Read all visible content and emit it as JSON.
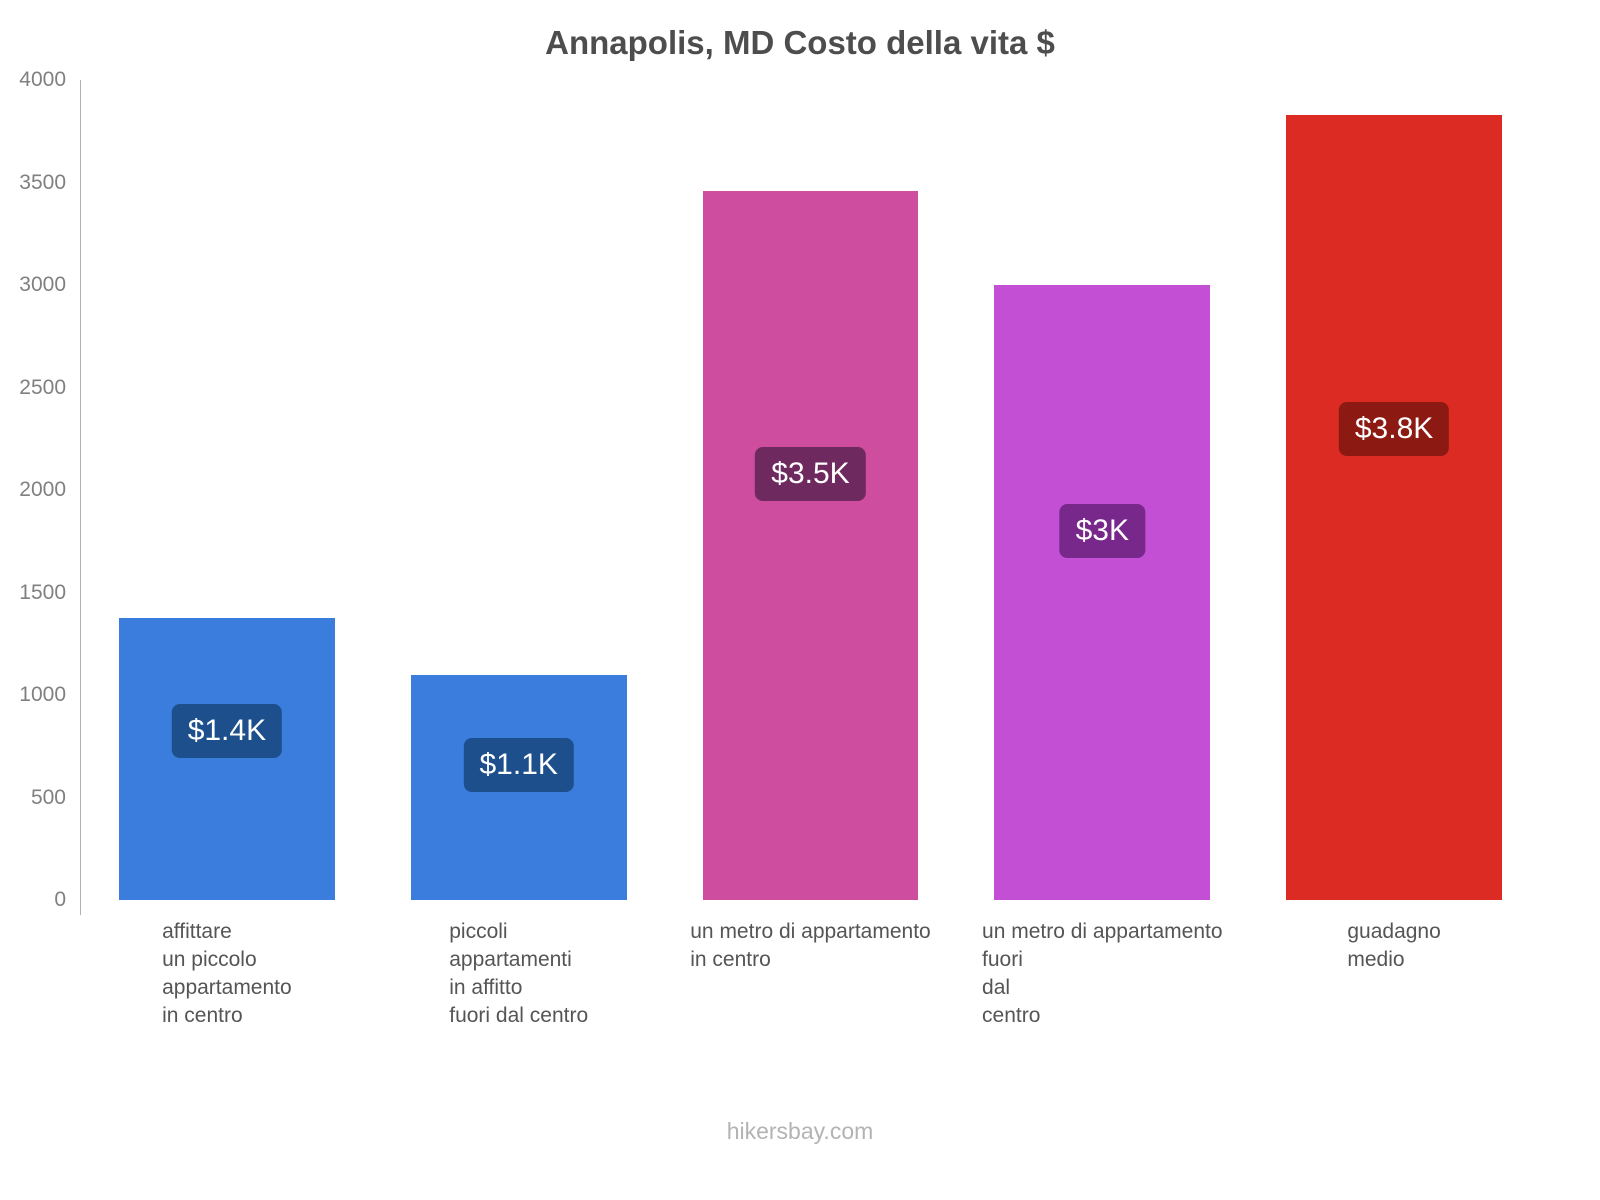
{
  "title": "Annapolis, MD Costo della vita $",
  "footer": "hikersbay.com",
  "y_axis": {
    "ticks": [
      4000,
      3500,
      3000,
      2500,
      2000,
      1500,
      1000,
      500,
      0
    ]
  },
  "chart_data": {
    "type": "bar",
    "title": "Annapolis, MD Costo della vita $",
    "categories": [
      "affittare un piccolo appartamento in centro",
      "piccoli appartamenti in affitto fuori dal centro",
      "un metro di appartamento in centro",
      "un metro di appartamento fuori dal centro",
      "guadagno medio"
    ],
    "categories_lines": [
      [
        "affittare",
        "un piccolo",
        "appartamento",
        "in centro"
      ],
      [
        "piccoli",
        "appartamenti",
        "in affitto",
        "fuori dal centro"
      ],
      [
        "un metro di appartamento",
        "in centro"
      ],
      [
        "un metro di appartamento",
        "fuori",
        "dal",
        "centro"
      ],
      [
        "guadagno",
        "medio"
      ]
    ],
    "values": [
      1375,
      1100,
      3460,
      3000,
      3830
    ],
    "value_labels": [
      "$1.4K",
      "$1.1K",
      "$3.5K",
      "$3K",
      "$3.8K"
    ],
    "bar_colors": [
      "#3b7ddd",
      "#3b7ddd",
      "#cf4d9f",
      "#c24fd4",
      "#db2b23"
    ],
    "label_bg_colors": [
      "#1d4f8c",
      "#1d4f8c",
      "#6e2a5f",
      "#78288b",
      "#8c1a12"
    ],
    "ylim": [
      0,
      4000
    ],
    "xlabel": "",
    "ylabel": "",
    "grid": false,
    "legend": false
  }
}
